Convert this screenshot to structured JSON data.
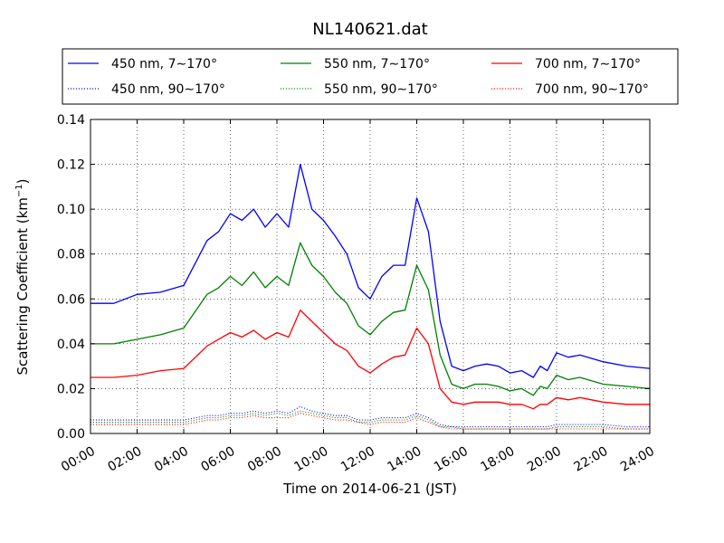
{
  "chart_data": {
    "type": "line",
    "title": "NL140621.dat",
    "xlabel": "Time on 2014-06-21 (JST)",
    "ylabel_main": "Scattering Coefficient (km",
    "ylabel_sup": "−1",
    "ylabel_end": ")",
    "x_unit": "hour",
    "xlim": [
      0,
      24
    ],
    "ylim": [
      0,
      0.14
    ],
    "xticks": [
      0,
      2,
      4,
      6,
      8,
      10,
      12,
      14,
      16,
      18,
      20,
      22,
      24
    ],
    "xtick_labels": [
      "00:00",
      "02:00",
      "04:00",
      "06:00",
      "08:00",
      "10:00",
      "12:00",
      "14:00",
      "16:00",
      "18:00",
      "20:00",
      "22:00",
      "24:00"
    ],
    "yticks": [
      0,
      0.02,
      0.04,
      0.06,
      0.08,
      0.1,
      0.12,
      0.14
    ],
    "ytick_labels": [
      "0.00",
      "0.02",
      "0.04",
      "0.06",
      "0.08",
      "0.10",
      "0.12",
      "0.14"
    ],
    "grid": true,
    "legend_position": "top",
    "x": [
      0,
      1,
      2,
      3,
      4,
      5,
      5.5,
      6,
      6.5,
      7,
      7.5,
      8,
      8.5,
      9,
      9.5,
      10,
      10.5,
      11,
      11.5,
      12,
      12.5,
      13,
      13.5,
      14,
      14.5,
      15,
      15.5,
      16,
      16.5,
      17,
      17.5,
      18,
      18.5,
      19,
      19.3,
      19.6,
      20,
      20.5,
      21,
      22,
      23,
      24
    ],
    "series": [
      {
        "name": "450 nm, 7∼170°",
        "color": "#0000ff",
        "style": "solid",
        "values": [
          0.058,
          0.058,
          0.062,
          0.063,
          0.066,
          0.086,
          0.09,
          0.098,
          0.095,
          0.1,
          0.092,
          0.098,
          0.092,
          0.12,
          0.1,
          0.095,
          0.088,
          0.08,
          0.065,
          0.06,
          0.07,
          0.075,
          0.075,
          0.105,
          0.09,
          0.05,
          0.03,
          0.028,
          0.03,
          0.031,
          0.03,
          0.027,
          0.028,
          0.025,
          0.03,
          0.028,
          0.036,
          0.034,
          0.035,
          0.032,
          0.03,
          0.029
        ]
      },
      {
        "name": "550 nm, 7∼170°",
        "color": "#008000",
        "style": "solid",
        "values": [
          0.04,
          0.04,
          0.042,
          0.044,
          0.047,
          0.062,
          0.065,
          0.07,
          0.066,
          0.072,
          0.065,
          0.07,
          0.066,
          0.085,
          0.075,
          0.07,
          0.063,
          0.058,
          0.048,
          0.044,
          0.05,
          0.054,
          0.055,
          0.075,
          0.064,
          0.035,
          0.022,
          0.02,
          0.022,
          0.022,
          0.021,
          0.019,
          0.02,
          0.017,
          0.021,
          0.02,
          0.026,
          0.024,
          0.025,
          0.022,
          0.021,
          0.02
        ]
      },
      {
        "name": "700 nm, 7∼170°",
        "color": "#ff0000",
        "style": "solid",
        "values": [
          0.025,
          0.025,
          0.026,
          0.028,
          0.029,
          0.039,
          0.042,
          0.045,
          0.043,
          0.046,
          0.042,
          0.045,
          0.043,
          0.055,
          0.05,
          0.045,
          0.04,
          0.037,
          0.03,
          0.027,
          0.031,
          0.034,
          0.035,
          0.047,
          0.04,
          0.02,
          0.014,
          0.013,
          0.014,
          0.014,
          0.014,
          0.013,
          0.013,
          0.011,
          0.013,
          0.013,
          0.016,
          0.015,
          0.016,
          0.014,
          0.013,
          0.013
        ]
      },
      {
        "name": "450 nm, 90∼170°",
        "color": "#0000ff",
        "style": "dotted",
        "values": [
          0.006,
          0.006,
          0.006,
          0.006,
          0.006,
          0.008,
          0.008,
          0.009,
          0.009,
          0.01,
          0.009,
          0.01,
          0.009,
          0.012,
          0.01,
          0.009,
          0.008,
          0.008,
          0.006,
          0.006,
          0.007,
          0.007,
          0.007,
          0.009,
          0.007,
          0.004,
          0.003,
          0.003,
          0.003,
          0.003,
          0.003,
          0.003,
          0.003,
          0.003,
          0.003,
          0.003,
          0.004,
          0.004,
          0.004,
          0.004,
          0.003,
          0.003
        ]
      },
      {
        "name": "550 nm, 90∼170°",
        "color": "#008000",
        "style": "dotted",
        "values": [
          0.005,
          0.005,
          0.005,
          0.005,
          0.005,
          0.007,
          0.007,
          0.008,
          0.008,
          0.009,
          0.008,
          0.009,
          0.008,
          0.01,
          0.009,
          0.008,
          0.007,
          0.007,
          0.005,
          0.005,
          0.006,
          0.006,
          0.006,
          0.008,
          0.006,
          0.003,
          0.003,
          0.002,
          0.002,
          0.002,
          0.002,
          0.002,
          0.002,
          0.002,
          0.002,
          0.002,
          0.003,
          0.003,
          0.003,
          0.003,
          0.002,
          0.002
        ]
      },
      {
        "name": "700 nm, 90∼170°",
        "color": "#ff0000",
        "style": "dotted",
        "values": [
          0.004,
          0.004,
          0.004,
          0.004,
          0.004,
          0.006,
          0.006,
          0.007,
          0.007,
          0.008,
          0.007,
          0.007,
          0.007,
          0.009,
          0.008,
          0.007,
          0.006,
          0.006,
          0.005,
          0.004,
          0.005,
          0.005,
          0.005,
          0.007,
          0.005,
          0.003,
          0.002,
          0.002,
          0.002,
          0.002,
          0.002,
          0.002,
          0.002,
          0.002,
          0.002,
          0.002,
          0.002,
          0.002,
          0.002,
          0.002,
          0.002,
          0.002
        ]
      }
    ]
  }
}
